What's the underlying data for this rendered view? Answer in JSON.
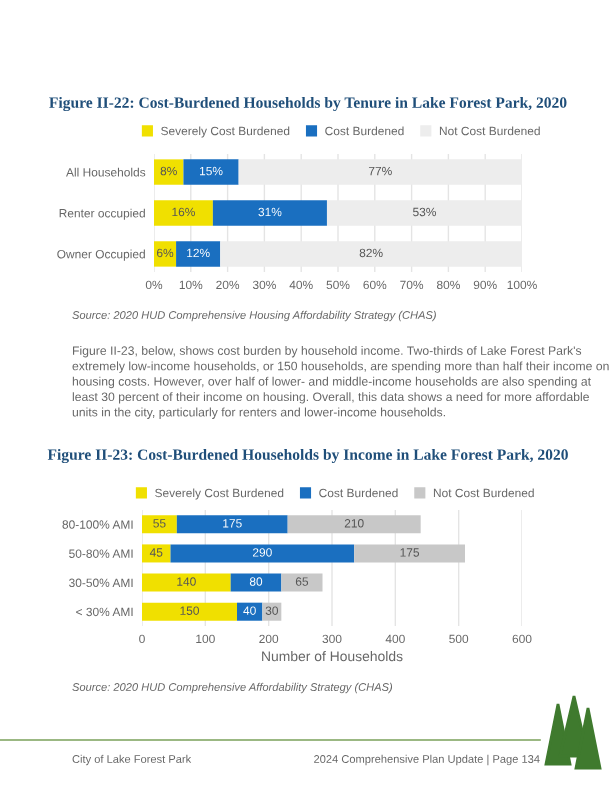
{
  "chart_data": [
    {
      "type": "bar",
      "orientation": "horizontal",
      "stacked": true,
      "title": "Figure II-22: Cost-Burdened Households by Tenure in Lake Forest Park, 2020",
      "categories": [
        "All Households",
        "Renter occupied",
        "Owner Occupied"
      ],
      "series": [
        {
          "name": "Severely Cost Burdened",
          "color": "#f0e000",
          "values": [
            8,
            16,
            6
          ],
          "value_labels": [
            "8%",
            "16%",
            "6%"
          ]
        },
        {
          "name": "Cost Burdened",
          "color": "#1a6fc0",
          "values": [
            15,
            31,
            12
          ],
          "value_labels": [
            "15%",
            "31%",
            "12%"
          ]
        },
        {
          "name": "Not Cost Burdened",
          "color": "#ededed",
          "values": [
            77,
            53,
            82
          ],
          "value_labels": [
            "77%",
            "53%",
            "82%"
          ]
        }
      ],
      "xlim": [
        0,
        100
      ],
      "xticks": [
        {
          "value": 0,
          "label": "0%"
        },
        {
          "value": 10,
          "label": "10%"
        },
        {
          "value": 20,
          "label": "20%"
        },
        {
          "value": 30,
          "label": "30%"
        },
        {
          "value": 40,
          "label": "40%"
        },
        {
          "value": 50,
          "label": "50%"
        },
        {
          "value": 60,
          "label": "60%"
        },
        {
          "value": 70,
          "label": "70%"
        },
        {
          "value": 80,
          "label": "80%"
        },
        {
          "value": 90,
          "label": "90%"
        },
        {
          "value": 100,
          "label": "100%"
        }
      ],
      "grid": "x",
      "legend": "top",
      "annotations": [
        "Source: 2020 HUD Comprehensive Housing Affordability Strategy (CHAS)"
      ]
    },
    {
      "type": "bar",
      "orientation": "horizontal",
      "stacked": true,
      "title": "Figure II-23: Cost-Burdened Households by Income in Lake Forest Park, 2020",
      "xlabel": "Number of Households",
      "categories": [
        "80-100% AMI",
        "50-80% AMI",
        "30-50% AMI",
        "< 30% AMI"
      ],
      "series": [
        {
          "name": "Severely Cost Burdened",
          "color": "#f0e000",
          "values": [
            55,
            45,
            140,
            150
          ]
        },
        {
          "name": "Cost Burdened",
          "color": "#1a6fc0",
          "values": [
            175,
            290,
            80,
            40
          ]
        },
        {
          "name": "Not Cost Burdened",
          "color": "#c8c8c8",
          "values": [
            210,
            175,
            65,
            30
          ]
        }
      ],
      "xlim": [
        0,
        600
      ],
      "xticks": [
        0,
        100,
        200,
        300,
        400,
        500,
        600
      ],
      "grid": "x",
      "legend": "top",
      "data_labels": true,
      "annotations": [
        "Figure II-23, below, shows cost burden by household income. Two-thirds of Lake Forest Park's extremely low-income households, or 150 households, are spending more than half their income on housing costs. However, over half of lower- and middle-income households are also spending at least 30 percent of their income on housing. Overall, this data shows a need for more affordable units in the city, particularly for renters and lower-income households.",
        "Source: 2020 HUD Comprehensive Affordability Strategy (CHAS)",
        "City of Lake Forest Park",
        "2024 Comprehensive Plan Update | Page 134"
      ]
    }
  ]
}
